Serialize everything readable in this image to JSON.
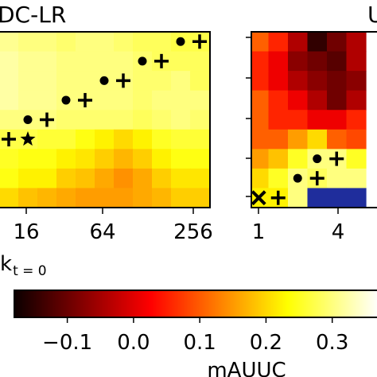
{
  "chart_data": [
    {
      "type": "heatmap",
      "title": "DC-LR",
      "xlabel": "k",
      "xlabel_subscript": "t = 0",
      "x_tick_labels": [
        "16",
        "64",
        "256"
      ],
      "x_scale": "log2",
      "legend": "none",
      "grid": false,
      "values": [
        [
          0.31,
          0.3,
          0.3,
          0.29,
          0.3,
          0.3,
          0.29,
          0.28,
          0.28,
          0.27,
          0.27
        ],
        [
          0.32,
          0.31,
          0.31,
          0.3,
          0.3,
          0.3,
          0.3,
          0.29,
          0.28,
          0.28,
          0.28
        ],
        [
          0.32,
          0.31,
          0.31,
          0.3,
          0.3,
          0.3,
          0.3,
          0.29,
          0.29,
          0.3,
          0.28
        ],
        [
          0.32,
          0.31,
          0.31,
          0.3,
          0.3,
          0.3,
          0.3,
          0.29,
          0.3,
          0.3,
          0.3
        ],
        [
          0.3,
          0.3,
          0.3,
          0.29,
          0.29,
          0.29,
          0.29,
          0.28,
          0.29,
          0.3,
          0.29
        ],
        [
          0.27,
          0.27,
          0.26,
          0.26,
          0.24,
          0.22,
          0.2,
          0.22,
          0.25,
          0.26,
          0.26
        ],
        [
          0.25,
          0.24,
          0.24,
          0.22,
          0.21,
          0.19,
          0.17,
          0.19,
          0.22,
          0.24,
          0.24
        ],
        [
          0.24,
          0.22,
          0.22,
          0.19,
          0.18,
          0.16,
          0.14,
          0.16,
          0.19,
          0.21,
          0.21
        ],
        [
          0.2,
          0.18,
          0.17,
          0.16,
          0.15,
          0.15,
          0.15,
          0.16,
          0.17,
          0.19,
          0.19
        ]
      ],
      "markers": [
        {
          "type": "dot",
          "col": 9,
          "row": 0
        },
        {
          "type": "plus",
          "col": 10,
          "row": 0
        },
        {
          "type": "dot",
          "col": 7,
          "row": 1
        },
        {
          "type": "plus",
          "col": 8,
          "row": 1
        },
        {
          "type": "dot",
          "col": 5,
          "row": 2
        },
        {
          "type": "plus",
          "col": 6,
          "row": 2
        },
        {
          "type": "dot",
          "col": 3,
          "row": 3
        },
        {
          "type": "plus",
          "col": 4,
          "row": 3
        },
        {
          "type": "dot",
          "col": 1,
          "row": 4
        },
        {
          "type": "plus",
          "col": 2,
          "row": 4
        },
        {
          "type": "plus",
          "col": 0,
          "row": 5
        },
        {
          "type": "star",
          "col": 1,
          "row": 5
        }
      ]
    },
    {
      "type": "heatmap",
      "title": "",
      "x_tick_labels": [
        "1",
        "4"
      ],
      "legend": "none",
      "grid": false,
      "values": [
        [
          0.1,
          0.05,
          -0.05,
          -0.15,
          -0.1,
          -0.05
        ],
        [
          0.05,
          0.0,
          -0.08,
          -0.1,
          -0.12,
          -0.05
        ],
        [
          0.05,
          0.0,
          -0.05,
          -0.08,
          -0.1,
          -0.08
        ],
        [
          0.1,
          0.05,
          0.0,
          -0.05,
          -0.1,
          -0.05
        ],
        [
          0.1,
          0.05,
          0.05,
          0.0,
          0.0,
          0.05
        ],
        [
          0.1,
          0.1,
          0.15,
          0.2,
          0.1,
          0.08
        ],
        [
          0.15,
          0.18,
          0.25,
          0.3,
          0.3,
          0.25
        ],
        [
          0.2,
          0.25,
          0.3,
          0.28,
          0.3,
          0.3
        ],
        [
          0.22,
          0.22,
          0.3,
          null,
          null,
          null
        ]
      ],
      "markers": [
        {
          "type": "dot",
          "col": 3,
          "row": 6
        },
        {
          "type": "plus",
          "col": 4,
          "row": 6
        },
        {
          "type": "dot",
          "col": 2,
          "row": 7
        },
        {
          "type": "plus",
          "col": 3,
          "row": 7
        },
        {
          "type": "x",
          "col": 0,
          "row": 8
        },
        {
          "type": "plus",
          "col": 1,
          "row": 8
        }
      ],
      "blue_region_color": "#1f2d9c"
    }
  ],
  "colorbar": {
    "label": "mAUUC",
    "colormap": "hot",
    "vmin": -0.18,
    "vmax": 0.37,
    "ticks": [
      -0.1,
      0.0,
      0.1,
      0.2,
      0.3
    ],
    "tick_labels": [
      "−0.1",
      "0.0",
      "0.1",
      "0.2",
      "0.3"
    ]
  },
  "left_title_visible": "DC-LR",
  "right_title_visible": "U"
}
